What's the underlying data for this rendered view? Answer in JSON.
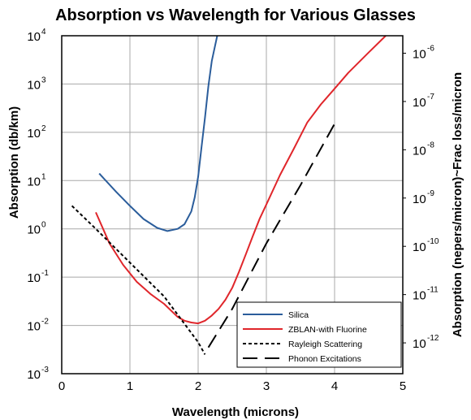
{
  "chart_data": {
    "type": "line",
    "title": "Absorption vs Wavelength for Various Glasses",
    "xlabel": "Wavelength (microns)",
    "ylabel": "Absorption (db/km)",
    "y2label": "Absorption (nepers/micron)~Frac loss/micron",
    "xlim": [
      0,
      5
    ],
    "ylim": [
      0.001,
      10000
    ],
    "yscale": "log",
    "y2lim": [
      2.3e-13,
      2.3e-06
    ],
    "y2scale": "log",
    "grid": true,
    "legend_position": "bottom-right",
    "x_ticks": [
      "0",
      "1",
      "2",
      "3",
      "4",
      "5"
    ],
    "y_ticks": [
      {
        "base": "10",
        "exp": "-3"
      },
      {
        "base": "10",
        "exp": "-2"
      },
      {
        "base": "10",
        "exp": "-1"
      },
      {
        "base": "10",
        "exp": "0"
      },
      {
        "base": "10",
        "exp": "1"
      },
      {
        "base": "10",
        "exp": "2"
      },
      {
        "base": "10",
        "exp": "3"
      },
      {
        "base": "10",
        "exp": "4"
      }
    ],
    "y2_ticks": [
      {
        "base": "10",
        "exp": "-12"
      },
      {
        "base": "10",
        "exp": "-11"
      },
      {
        "base": "10",
        "exp": "-10"
      },
      {
        "base": "10",
        "exp": "-9"
      },
      {
        "base": "10",
        "exp": "-8"
      },
      {
        "base": "10",
        "exp": "-7"
      },
      {
        "base": "10",
        "exp": "-6"
      }
    ],
    "series": [
      {
        "name": "Silica",
        "color": "#2b5d9b",
        "dash": "solid",
        "x": [
          0.55,
          0.8,
          1.0,
          1.2,
          1.4,
          1.55,
          1.7,
          1.8,
          1.9,
          1.95,
          2.0,
          2.05,
          2.1,
          2.15,
          2.2,
          2.28
        ],
        "y": [
          14,
          5.8,
          3.0,
          1.6,
          1.05,
          0.9,
          1.0,
          1.25,
          2.3,
          4.5,
          12,
          50,
          200,
          900,
          3000,
          10000
        ]
      },
      {
        "name": "ZBLAN-with Fluorine",
        "color": "#e0262b",
        "dash": "solid",
        "x": [
          0.5,
          0.7,
          0.9,
          1.1,
          1.3,
          1.5,
          1.7,
          1.8,
          1.9,
          2.0,
          2.1,
          2.2,
          2.3,
          2.4,
          2.5,
          2.6,
          2.7,
          2.8,
          2.9,
          3.0,
          3.2,
          3.4,
          3.6,
          3.8,
          4.0,
          4.2,
          4.5,
          4.75
        ],
        "y": [
          2.2,
          0.5,
          0.18,
          0.08,
          0.045,
          0.028,
          0.015,
          0.0125,
          0.0115,
          0.011,
          0.0125,
          0.016,
          0.022,
          0.034,
          0.06,
          0.13,
          0.3,
          0.7,
          1.6,
          3.2,
          13,
          45,
          160,
          380,
          800,
          1700,
          4500,
          10000
        ]
      },
      {
        "name": "Rayleigh Scattering",
        "color": "#000000",
        "dash": "short",
        "x": [
          0.15,
          0.5,
          1.0,
          1.5,
          2.0,
          2.1
        ],
        "y": [
          3.0,
          1.0,
          0.2,
          0.04,
          0.0045,
          0.0025
        ]
      },
      {
        "name": "Phonon Excitations",
        "color": "#000000",
        "dash": "long",
        "x": [
          2.15,
          2.5,
          3.0,
          3.5,
          4.0
        ],
        "y": [
          0.0035,
          0.022,
          0.5,
          8,
          150
        ]
      }
    ]
  }
}
